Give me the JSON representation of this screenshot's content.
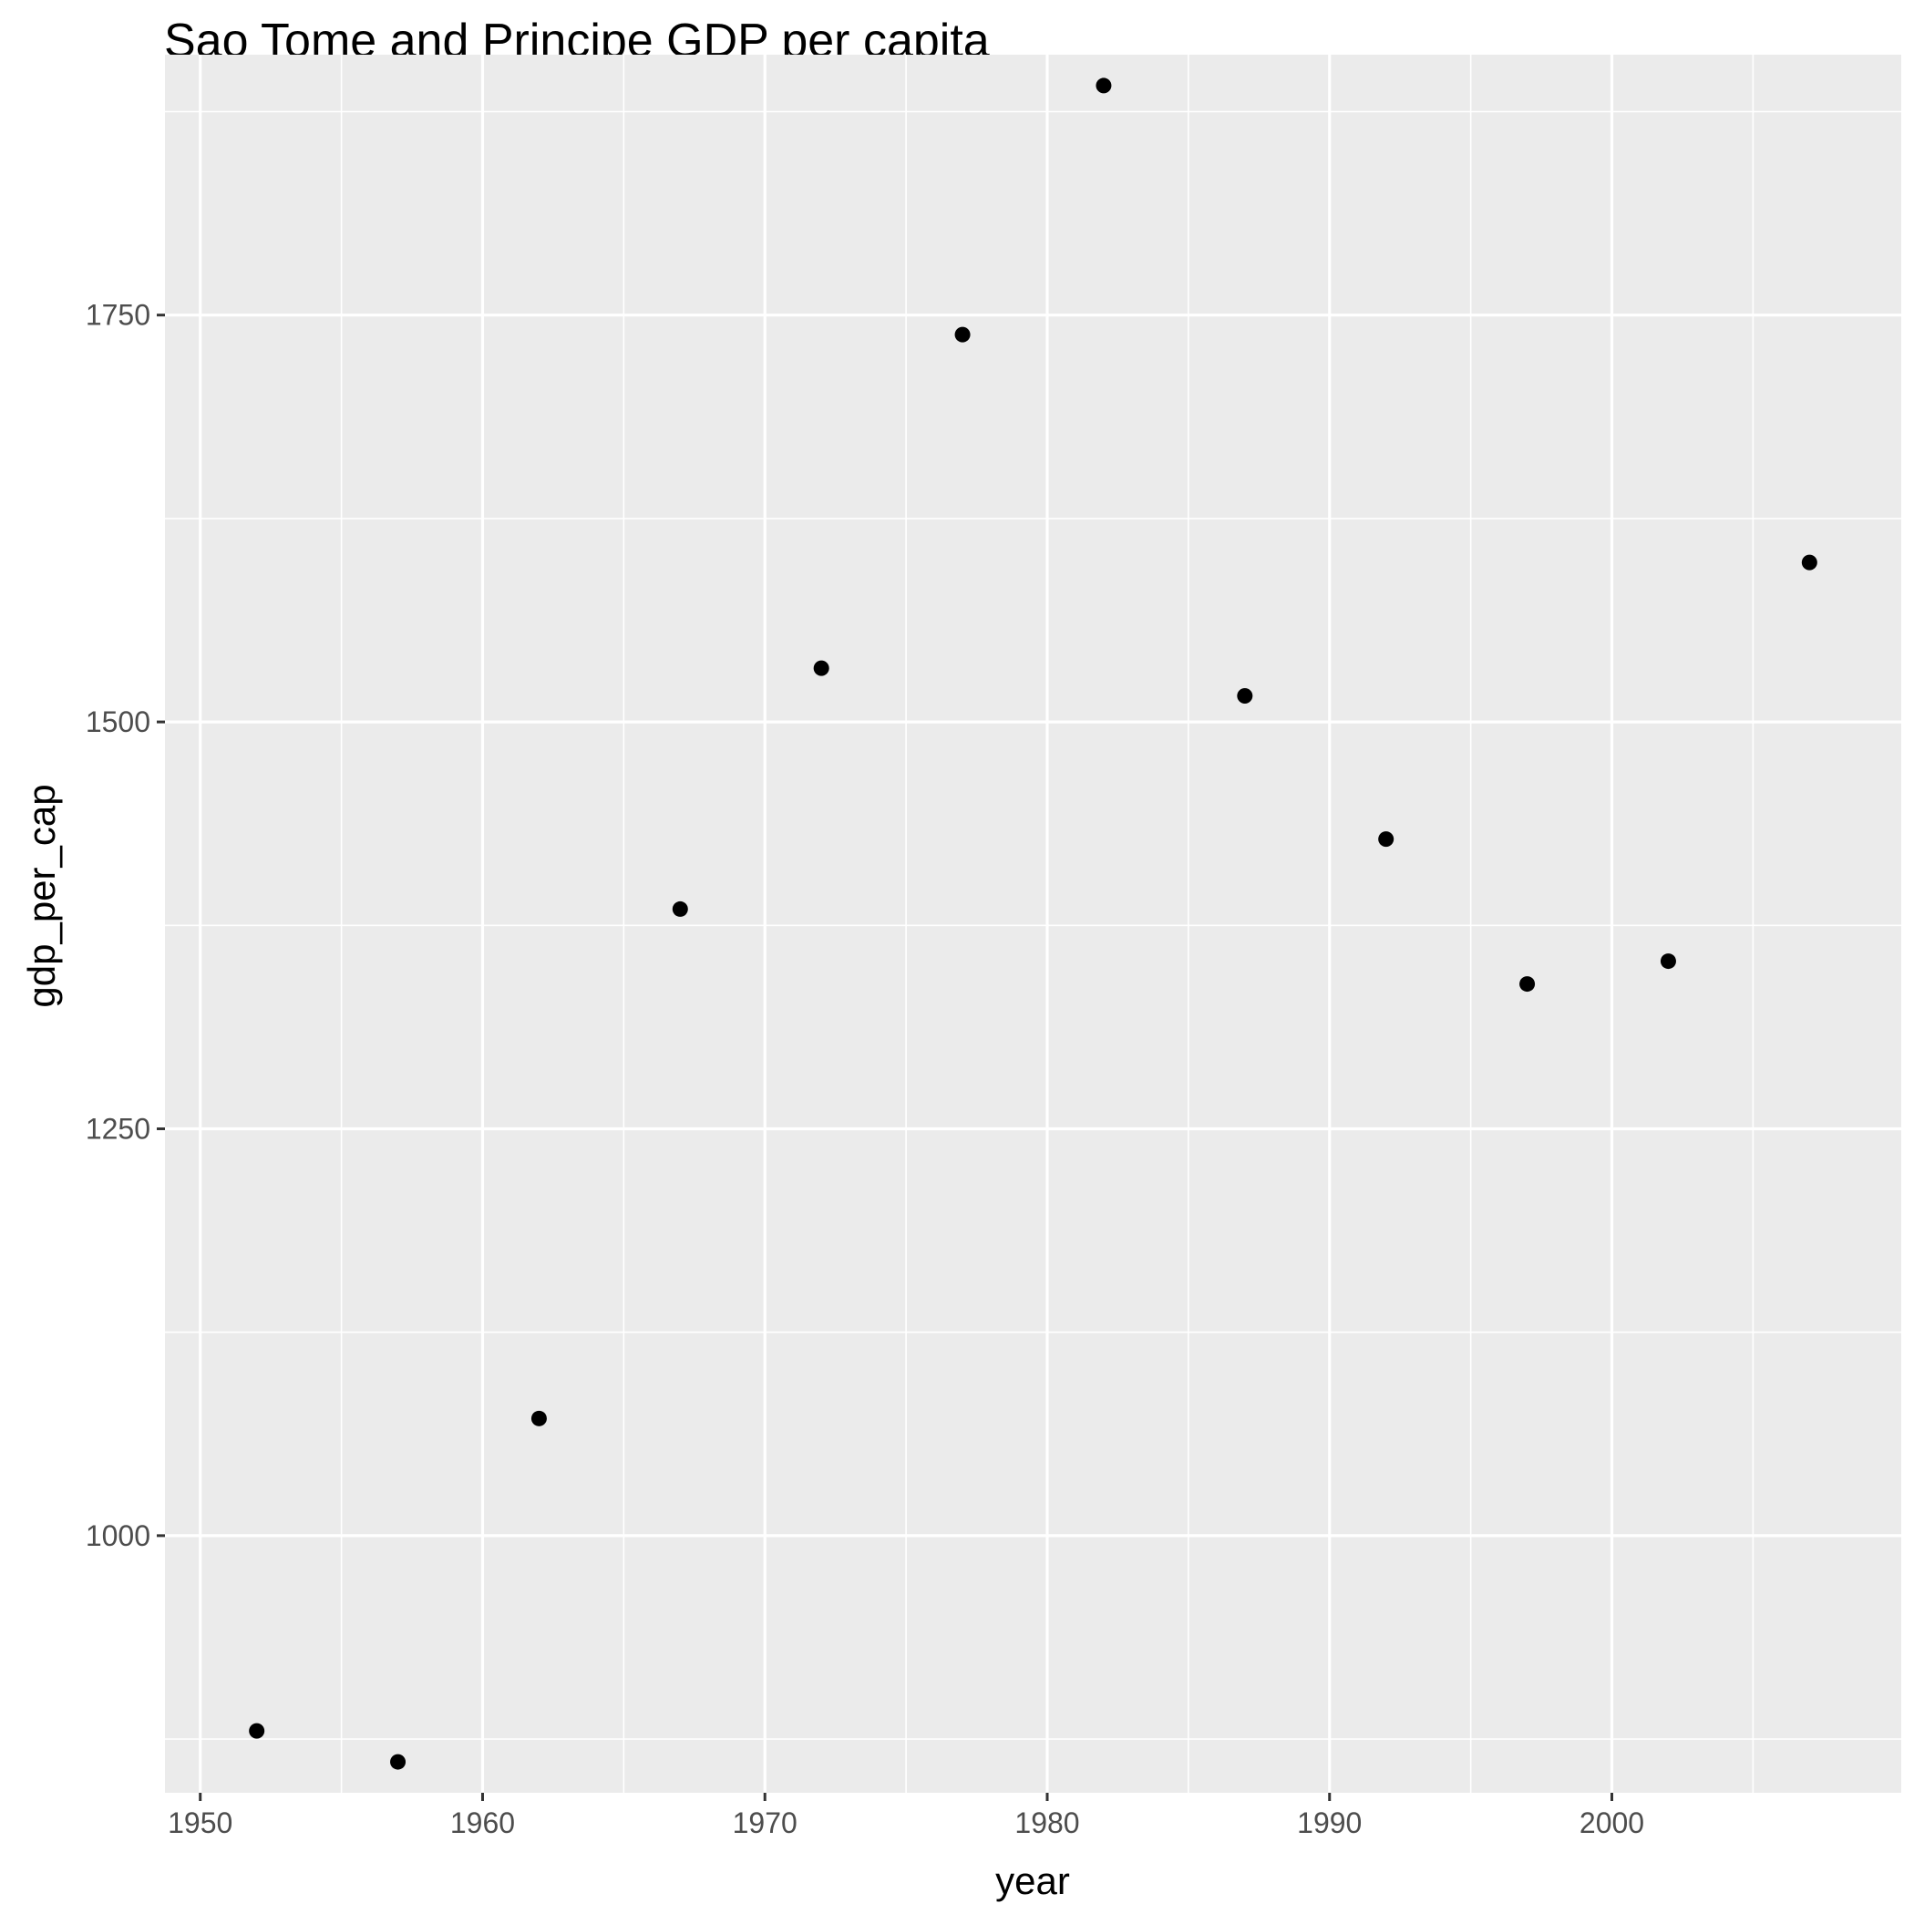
{
  "chart_data": {
    "type": "scatter",
    "title": "Sao Tome and Principe GDP per capita",
    "xlabel": "year",
    "ylabel": "gdp_per_cap",
    "x": [
      1952,
      1957,
      1962,
      1967,
      1972,
      1977,
      1982,
      1987,
      1992,
      1997,
      2002,
      2007
    ],
    "y": [
      880,
      861,
      1072,
      1385,
      1533,
      1738,
      1891,
      1516,
      1428,
      1339,
      1353,
      1598
    ],
    "xlim": [
      1948.75,
      2010.25
    ],
    "ylim": [
      842,
      1910
    ],
    "x_ticks": [
      1950,
      1960,
      1970,
      1980,
      1990,
      2000
    ],
    "x_tick_labels": [
      "1950",
      "1960",
      "1970",
      "1980",
      "1990",
      "2000"
    ],
    "y_ticks": [
      1000,
      1250,
      1500,
      1750
    ],
    "y_tick_labels": [
      "1000",
      "1250",
      "1500",
      "1750"
    ],
    "grid": true,
    "legend": "none",
    "colors": {
      "panel": "#ebebeb",
      "grid": "#ffffff",
      "point": "#000000",
      "tick_text": "#4d4d4d",
      "tick_mark": "#333333"
    }
  }
}
